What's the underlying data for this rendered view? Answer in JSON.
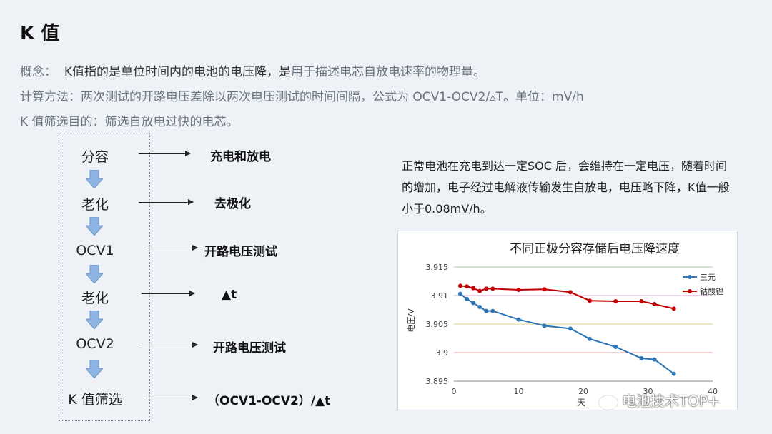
{
  "title": "K 值",
  "concept": {
    "label": "概念：",
    "text_dark": "K值指的是单位时间内的电池的电压降，是",
    "text_light": "用于描述电芯自放电速率的物理量。"
  },
  "method": "计算方法：两次测试的开路电压差除以两次电压测试的时间间隔，公式为 OCV1-OCV2/▵T。单位：mV/h",
  "purpose": "K 值筛选目的：筛选自放电过快的电芯。",
  "flow": [
    {
      "step": "分容",
      "result": "充电和放电"
    },
    {
      "step": "老化",
      "result": "去极化"
    },
    {
      "step": "OCV1",
      "result": "开路电压测试"
    },
    {
      "step": "老化",
      "result": "▲t"
    },
    {
      "step": "OCV2",
      "result": "开路电压测试"
    },
    {
      "step": "K 值筛选",
      "result": "（OCV1-OCV2）/▲t"
    }
  ],
  "description": "正常电池在充电到达一定SOC 后，会维持在一定电压，随着时间的增加，电子经过电解液传输发生自放电，电压略下降，K值一般小于0.08mV/h。",
  "watermark": "电池技术TOP+",
  "colors": {
    "arrow_fill": "#8db4e3",
    "series1": "#2e75b6",
    "series2": "#c00000"
  },
  "chart_data": {
    "type": "line",
    "title": "不同正极分容存储后电压降速度",
    "xlabel": "天",
    "ylabel": "电压/V",
    "xlim": [
      0,
      40
    ],
    "ylim": [
      3.895,
      3.915
    ],
    "xticks": [
      "0",
      "10",
      "20",
      "30",
      "40"
    ],
    "yticks": [
      "3.895",
      "3.9",
      "3.905",
      "3.91",
      "3.915"
    ],
    "legend_position": "top-right",
    "series": [
      {
        "name": "三元",
        "x": [
          1,
          2,
          3,
          4,
          5,
          6,
          10,
          14,
          18,
          21,
          25,
          29,
          31,
          34
        ],
        "values": [
          3.9103,
          3.9094,
          3.9087,
          3.908,
          3.9073,
          3.9073,
          3.9058,
          3.9047,
          3.9042,
          3.9024,
          3.901,
          3.899,
          3.8988,
          3.8963
        ]
      },
      {
        "name": "钴酸锂",
        "x": [
          1,
          2,
          3,
          4,
          5,
          6,
          10,
          14,
          18,
          21,
          25,
          29,
          31,
          34
        ],
        "values": [
          3.9117,
          3.9116,
          3.9113,
          3.9108,
          3.9112,
          3.9112,
          3.911,
          3.9111,
          3.9106,
          3.9091,
          3.909,
          3.909,
          3.9085,
          3.9077
        ]
      }
    ]
  }
}
